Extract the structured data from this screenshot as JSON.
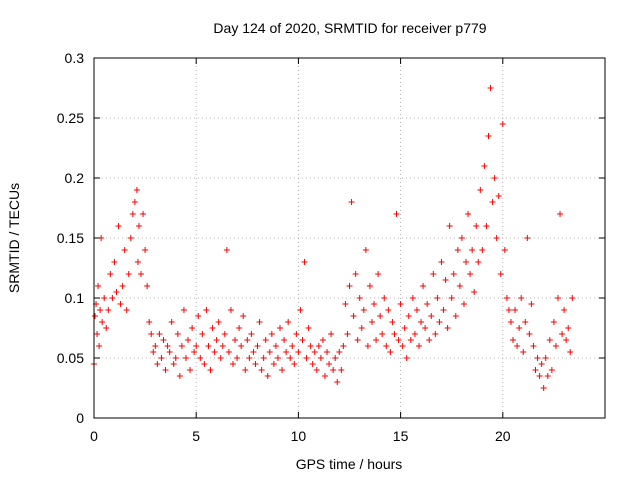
{
  "chart_data": {
    "type": "scatter",
    "title": "Day 124 of 2020, SRMTID for receiver p779",
    "xlabel": "GPS time / hours",
    "ylabel": "SRMTID / TECUs",
    "xlim": [
      0,
      25
    ],
    "ylim": [
      0,
      0.3
    ],
    "x_ticks": [
      0,
      5,
      10,
      15,
      20
    ],
    "x_tick_labels": [
      "0",
      "5",
      "10",
      "15",
      "20"
    ],
    "y_ticks": [
      0,
      0.05,
      0.1,
      0.15,
      0.2,
      0.25,
      0.3
    ],
    "y_tick_labels": [
      "0",
      "0.05",
      "0.1",
      "0.15",
      "0.2",
      "0.25",
      "0.3"
    ],
    "grid": true,
    "marker": "+",
    "color": "#ff0000",
    "series": [
      {
        "name": "SRMTID",
        "points": [
          [
            0.0,
            0.045
          ],
          [
            0.05,
            0.085
          ],
          [
            0.1,
            0.095
          ],
          [
            0.15,
            0.07
          ],
          [
            0.2,
            0.11
          ],
          [
            0.25,
            0.06
          ],
          [
            0.3,
            0.09
          ],
          [
            0.35,
            0.15
          ],
          [
            0.4,
            0.08
          ],
          [
            0.5,
            0.1
          ],
          [
            0.6,
            0.075
          ],
          [
            0.7,
            0.09
          ],
          [
            0.8,
            0.12
          ],
          [
            0.9,
            0.1
          ],
          [
            1.0,
            0.13
          ],
          [
            1.1,
            0.105
          ],
          [
            1.2,
            0.16
          ],
          [
            1.3,
            0.095
          ],
          [
            1.4,
            0.11
          ],
          [
            1.5,
            0.14
          ],
          [
            1.6,
            0.09
          ],
          [
            1.7,
            0.12
          ],
          [
            1.8,
            0.15
          ],
          [
            1.9,
            0.17
          ],
          [
            2.0,
            0.18
          ],
          [
            2.1,
            0.19
          ],
          [
            2.15,
            0.13
          ],
          [
            2.2,
            0.16
          ],
          [
            2.3,
            0.12
          ],
          [
            2.4,
            0.17
          ],
          [
            2.5,
            0.14
          ],
          [
            2.6,
            0.11
          ],
          [
            2.7,
            0.08
          ],
          [
            2.8,
            0.07
          ],
          [
            2.9,
            0.055
          ],
          [
            3.0,
            0.06
          ],
          [
            3.1,
            0.045
          ],
          [
            3.2,
            0.07
          ],
          [
            3.3,
            0.05
          ],
          [
            3.4,
            0.065
          ],
          [
            3.5,
            0.04
          ],
          [
            3.6,
            0.06
          ],
          [
            3.7,
            0.055
          ],
          [
            3.8,
            0.08
          ],
          [
            3.9,
            0.045
          ],
          [
            4.0,
            0.05
          ],
          [
            4.1,
            0.07
          ],
          [
            4.2,
            0.035
          ],
          [
            4.3,
            0.06
          ],
          [
            4.4,
            0.09
          ],
          [
            4.5,
            0.05
          ],
          [
            4.6,
            0.065
          ],
          [
            4.7,
            0.04
          ],
          [
            4.8,
            0.075
          ],
          [
            4.9,
            0.055
          ],
          [
            5.0,
            0.06
          ],
          [
            5.1,
            0.085
          ],
          [
            5.2,
            0.05
          ],
          [
            5.3,
            0.07
          ],
          [
            5.4,
            0.045
          ],
          [
            5.5,
            0.09
          ],
          [
            5.6,
            0.06
          ],
          [
            5.7,
            0.04
          ],
          [
            5.8,
            0.075
          ],
          [
            5.9,
            0.055
          ],
          [
            6.0,
            0.065
          ],
          [
            6.1,
            0.08
          ],
          [
            6.2,
            0.05
          ],
          [
            6.3,
            0.06
          ],
          [
            6.4,
            0.07
          ],
          [
            6.5,
            0.14
          ],
          [
            6.6,
            0.055
          ],
          [
            6.7,
            0.09
          ],
          [
            6.8,
            0.045
          ],
          [
            6.9,
            0.065
          ],
          [
            7.0,
            0.05
          ],
          [
            7.1,
            0.075
          ],
          [
            7.2,
            0.06
          ],
          [
            7.3,
            0.085
          ],
          [
            7.4,
            0.04
          ],
          [
            7.5,
            0.065
          ],
          [
            7.6,
            0.05
          ],
          [
            7.7,
            0.07
          ],
          [
            7.8,
            0.055
          ],
          [
            7.9,
            0.045
          ],
          [
            8.0,
            0.06
          ],
          [
            8.1,
            0.08
          ],
          [
            8.2,
            0.04
          ],
          [
            8.3,
            0.05
          ],
          [
            8.4,
            0.065
          ],
          [
            8.5,
            0.035
          ],
          [
            8.6,
            0.055
          ],
          [
            8.7,
            0.07
          ],
          [
            8.8,
            0.045
          ],
          [
            8.9,
            0.06
          ],
          [
            9.0,
            0.05
          ],
          [
            9.1,
            0.075
          ],
          [
            9.2,
            0.04
          ],
          [
            9.3,
            0.065
          ],
          [
            9.4,
            0.055
          ],
          [
            9.5,
            0.08
          ],
          [
            9.6,
            0.05
          ],
          [
            9.7,
            0.06
          ],
          [
            9.8,
            0.045
          ],
          [
            9.9,
            0.07
          ],
          [
            10.0,
            0.055
          ],
          [
            10.1,
            0.09
          ],
          [
            10.2,
            0.065
          ],
          [
            10.3,
            0.13
          ],
          [
            10.4,
            0.05
          ],
          [
            10.5,
            0.075
          ],
          [
            10.6,
            0.06
          ],
          [
            10.7,
            0.045
          ],
          [
            10.8,
            0.055
          ],
          [
            10.9,
            0.04
          ],
          [
            11.0,
            0.06
          ],
          [
            11.1,
            0.05
          ],
          [
            11.2,
            0.065
          ],
          [
            11.3,
            0.035
          ],
          [
            11.4,
            0.055
          ],
          [
            11.5,
            0.045
          ],
          [
            11.6,
            0.07
          ],
          [
            11.7,
            0.04
          ],
          [
            11.8,
            0.05
          ],
          [
            11.9,
            0.03
          ],
          [
            12.0,
            0.055
          ],
          [
            12.1,
            0.04
          ],
          [
            12.2,
            0.06
          ],
          [
            12.3,
            0.095
          ],
          [
            12.4,
            0.07
          ],
          [
            12.5,
            0.11
          ],
          [
            12.6,
            0.18
          ],
          [
            12.7,
            0.085
          ],
          [
            12.8,
            0.12
          ],
          [
            12.9,
            0.065
          ],
          [
            13.0,
            0.1
          ],
          [
            13.1,
            0.075
          ],
          [
            13.2,
            0.09
          ],
          [
            13.3,
            0.14
          ],
          [
            13.4,
            0.06
          ],
          [
            13.5,
            0.11
          ],
          [
            13.6,
            0.08
          ],
          [
            13.7,
            0.095
          ],
          [
            13.8,
            0.065
          ],
          [
            13.9,
            0.12
          ],
          [
            14.0,
            0.085
          ],
          [
            14.1,
            0.07
          ],
          [
            14.2,
            0.1
          ],
          [
            14.3,
            0.06
          ],
          [
            14.4,
            0.09
          ],
          [
            14.5,
            0.055
          ],
          [
            14.6,
            0.08
          ],
          [
            14.7,
            0.07
          ],
          [
            14.8,
            0.17
          ],
          [
            14.9,
            0.065
          ],
          [
            15.0,
            0.095
          ],
          [
            15.1,
            0.06
          ],
          [
            15.2,
            0.075
          ],
          [
            15.3,
            0.05
          ],
          [
            15.4,
            0.085
          ],
          [
            15.5,
            0.065
          ],
          [
            15.6,
            0.1
          ],
          [
            15.7,
            0.07
          ],
          [
            15.8,
            0.09
          ],
          [
            15.9,
            0.06
          ],
          [
            16.0,
            0.08
          ],
          [
            16.1,
            0.11
          ],
          [
            16.2,
            0.075
          ],
          [
            16.3,
            0.095
          ],
          [
            16.4,
            0.065
          ],
          [
            16.5,
            0.085
          ],
          [
            16.6,
            0.12
          ],
          [
            16.7,
            0.07
          ],
          [
            16.8,
            0.1
          ],
          [
            16.9,
            0.08
          ],
          [
            17.0,
            0.13
          ],
          [
            17.1,
            0.09
          ],
          [
            17.2,
            0.115
          ],
          [
            17.3,
            0.075
          ],
          [
            17.4,
            0.16
          ],
          [
            17.5,
            0.1
          ],
          [
            17.6,
            0.12
          ],
          [
            17.7,
            0.085
          ],
          [
            17.8,
            0.14
          ],
          [
            17.9,
            0.11
          ],
          [
            18.0,
            0.15
          ],
          [
            18.1,
            0.095
          ],
          [
            18.2,
            0.13
          ],
          [
            18.3,
            0.17
          ],
          [
            18.4,
            0.12
          ],
          [
            18.5,
            0.14
          ],
          [
            18.6,
            0.105
          ],
          [
            18.7,
            0.16
          ],
          [
            18.8,
            0.13
          ],
          [
            18.9,
            0.19
          ],
          [
            19.0,
            0.14
          ],
          [
            19.1,
            0.21
          ],
          [
            19.2,
            0.16
          ],
          [
            19.3,
            0.235
          ],
          [
            19.4,
            0.275
          ],
          [
            19.5,
            0.18
          ],
          [
            19.6,
            0.2
          ],
          [
            19.7,
            0.15
          ],
          [
            19.8,
            0.185
          ],
          [
            19.9,
            0.12
          ],
          [
            20.0,
            0.245
          ],
          [
            20.1,
            0.14
          ],
          [
            20.2,
            0.1
          ],
          [
            20.3,
            0.09
          ],
          [
            20.4,
            0.08
          ],
          [
            20.5,
            0.065
          ],
          [
            20.6,
            0.09
          ],
          [
            20.7,
            0.06
          ],
          [
            20.8,
            0.075
          ],
          [
            20.9,
            0.1
          ],
          [
            21.0,
            0.055
          ],
          [
            21.1,
            0.08
          ],
          [
            21.2,
            0.15
          ],
          [
            21.3,
            0.07
          ],
          [
            21.4,
            0.095
          ],
          [
            21.5,
            0.06
          ],
          [
            21.6,
            0.04
          ],
          [
            21.7,
            0.05
          ],
          [
            21.8,
            0.035
          ],
          [
            21.9,
            0.045
          ],
          [
            22.0,
            0.025
          ],
          [
            22.1,
            0.05
          ],
          [
            22.2,
            0.035
          ],
          [
            22.3,
            0.065
          ],
          [
            22.4,
            0.04
          ],
          [
            22.5,
            0.08
          ],
          [
            22.6,
            0.06
          ],
          [
            22.7,
            0.1
          ],
          [
            22.8,
            0.17
          ],
          [
            22.9,
            0.07
          ],
          [
            23.0,
            0.09
          ],
          [
            23.1,
            0.065
          ],
          [
            23.2,
            0.075
          ],
          [
            23.3,
            0.055
          ],
          [
            23.4,
            0.1
          ]
        ]
      }
    ]
  }
}
